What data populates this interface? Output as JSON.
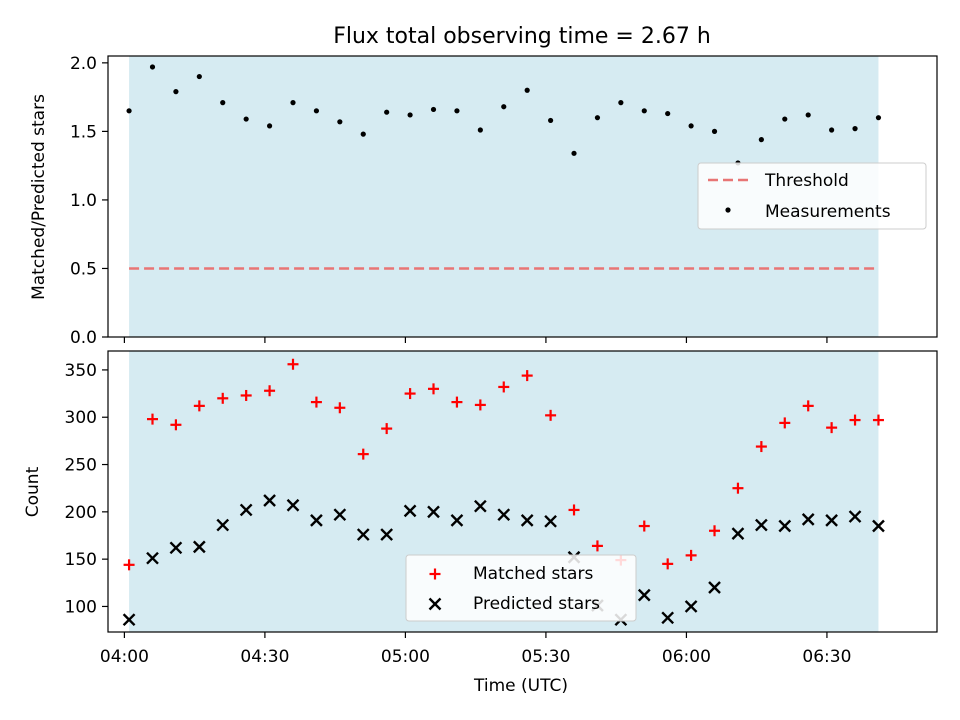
{
  "title": "Flux total observing time = 2.67 h",
  "colors": {
    "band": "#add8e6",
    "threshold": "#e87575",
    "matched": "#ff0000",
    "predicted": "#000000",
    "measurement": "#000000"
  },
  "chart_data": [
    {
      "type": "scatter",
      "ylabel": "Matched/Predicted stars",
      "xlabel": "",
      "ylim": [
        0,
        2.05
      ],
      "yticks": [
        0.0,
        0.5,
        1.0,
        1.5,
        2.0
      ],
      "ytick_labels": [
        "0.0",
        "0.5",
        "1.0",
        "1.5",
        "2.0"
      ],
      "xrange_minutes_after_04_00": [
        -3.5,
        173.5
      ],
      "shaded_span": [
        "04:01",
        "06:41"
      ],
      "grid": false,
      "legend_position": "center-right",
      "threshold": {
        "name": "Threshold",
        "value": 0.5,
        "style": "dashed"
      },
      "series": [
        {
          "name": "Measurements",
          "marker": "dot",
          "x": [
            "04:01",
            "04:06",
            "04:11",
            "04:16",
            "04:21",
            "04:26",
            "04:31",
            "04:36",
            "04:41",
            "04:46",
            "04:51",
            "04:56",
            "05:01",
            "05:06",
            "05:11",
            "05:16",
            "05:21",
            "05:26",
            "05:31",
            "05:36",
            "05:41",
            "05:46",
            "05:51",
            "05:56",
            "06:01",
            "06:06",
            "06:11",
            "06:16",
            "06:21",
            "06:26",
            "06:31",
            "06:36",
            "06:41"
          ],
          "y": [
            1.65,
            1.97,
            1.79,
            1.9,
            1.71,
            1.59,
            1.54,
            1.71,
            1.65,
            1.57,
            1.48,
            1.64,
            1.62,
            1.66,
            1.65,
            1.51,
            1.68,
            1.8,
            1.58,
            1.34,
            1.6,
            1.71,
            1.65,
            1.63,
            1.54,
            1.5,
            1.27,
            1.44,
            1.59,
            1.62,
            1.51,
            1.52,
            1.6
          ]
        }
      ]
    },
    {
      "type": "scatter",
      "ylabel": "Count",
      "xlabel": "Time (UTC)",
      "ylim": [
        73,
        370
      ],
      "yticks": [
        100,
        150,
        200,
        250,
        300,
        350
      ],
      "ytick_labels": [
        "100",
        "150",
        "200",
        "250",
        "300",
        "350"
      ],
      "xticks": [
        "04:00",
        "04:30",
        "05:00",
        "05:30",
        "06:00",
        "06:30"
      ],
      "xtick_labels": [
        "04:00",
        "04:30",
        "05:00",
        "05:30",
        "06:00",
        "06:30"
      ],
      "shaded_span": [
        "04:01",
        "06:41"
      ],
      "grid": false,
      "legend_position": "lower-center",
      "series": [
        {
          "name": "Matched stars",
          "marker": "plus",
          "x": [
            "04:01",
            "04:06",
            "04:11",
            "04:16",
            "04:21",
            "04:26",
            "04:31",
            "04:36",
            "04:41",
            "04:46",
            "04:51",
            "04:56",
            "05:01",
            "05:06",
            "05:11",
            "05:16",
            "05:21",
            "05:26",
            "05:31",
            "05:36",
            "05:41",
            "05:46",
            "05:51",
            "05:56",
            "06:01",
            "06:06",
            "06:11",
            "06:16",
            "06:21",
            "06:26",
            "06:31",
            "06:36",
            "06:41"
          ],
          "y": [
            144,
            298,
            292,
            312,
            320,
            323,
            328,
            356,
            316,
            310,
            261,
            288,
            325,
            330,
            316,
            313,
            332,
            344,
            302,
            202,
            164,
            149,
            185,
            145,
            154,
            180,
            225,
            269,
            294,
            312,
            289,
            297,
            297
          ]
        },
        {
          "name": "Predicted stars",
          "marker": "x",
          "x": [
            "04:01",
            "04:06",
            "04:11",
            "04:16",
            "04:21",
            "04:26",
            "04:31",
            "04:36",
            "04:41",
            "04:46",
            "04:51",
            "04:56",
            "05:01",
            "05:06",
            "05:11",
            "05:16",
            "05:21",
            "05:26",
            "05:31",
            "05:36",
            "05:41",
            "05:46",
            "05:51",
            "05:56",
            "06:01",
            "06:06",
            "06:11",
            "06:16",
            "06:21",
            "06:26",
            "06:31",
            "06:36",
            "06:41"
          ],
          "y": [
            86,
            151,
            162,
            163,
            186,
            202,
            212,
            207,
            191,
            197,
            176,
            176,
            201,
            200,
            191,
            206,
            197,
            191,
            190,
            152,
            101,
            86,
            112,
            88,
            100,
            120,
            177,
            186,
            185,
            192,
            191,
            195,
            185
          ]
        }
      ]
    }
  ]
}
